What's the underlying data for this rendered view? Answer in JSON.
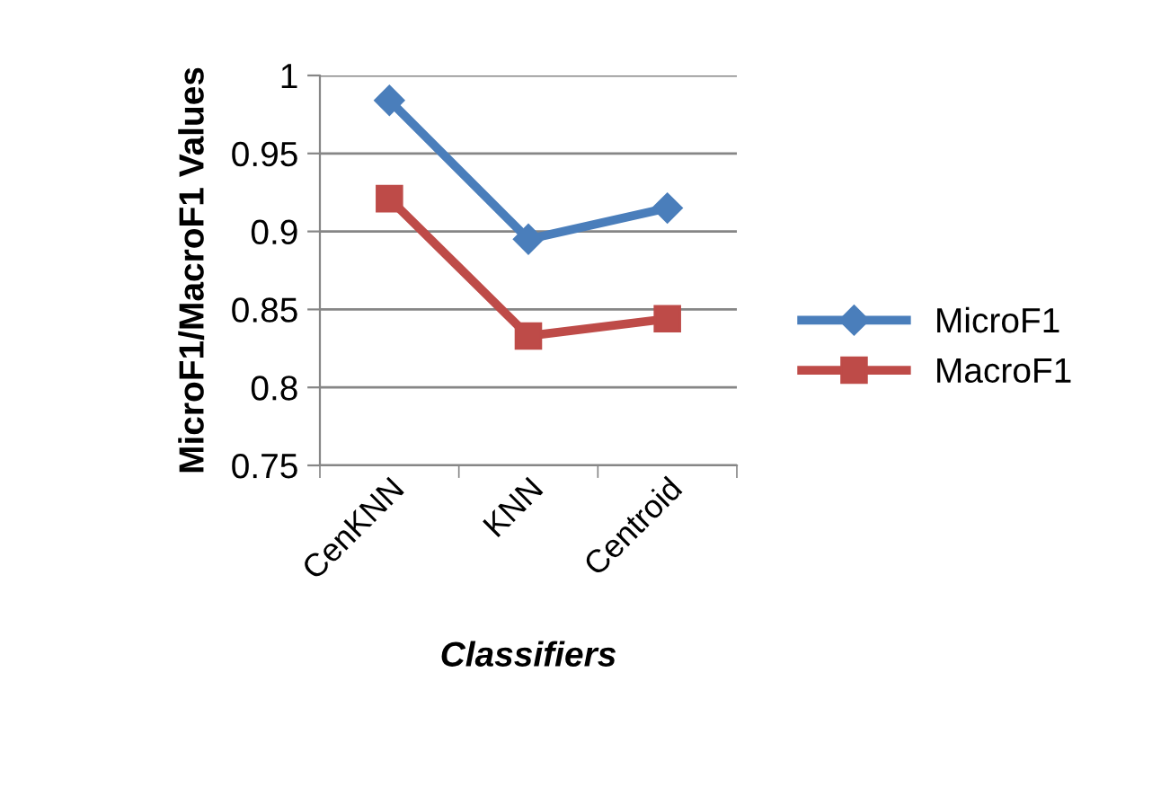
{
  "chart_data": {
    "type": "line",
    "xlabel": "Classifiers",
    "ylabel": "MicroF1/MacroF1 Values",
    "categories": [
      "CenKNN",
      "KNN",
      "Centroid"
    ],
    "series": [
      {
        "name": "MicroF1",
        "color": "#4a7ebb",
        "marker": "diamond",
        "values": [
          0.984,
          0.895,
          0.915
        ]
      },
      {
        "name": "MacroF1",
        "color": "#be4b48",
        "marker": "square",
        "values": [
          0.921,
          0.833,
          0.844
        ]
      }
    ],
    "ylim": [
      0.75,
      1
    ],
    "yticks": [
      0.75,
      0.8,
      0.85,
      0.9,
      0.95,
      1
    ],
    "grid": "y",
    "legend": "right"
  }
}
